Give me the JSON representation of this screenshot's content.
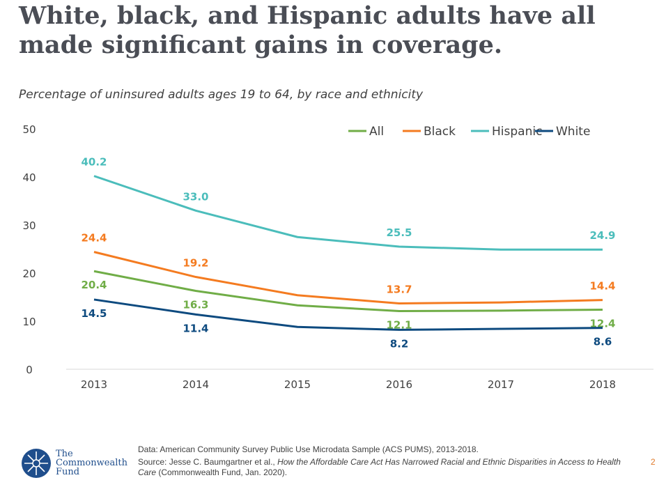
{
  "title": "White, black, and Hispanic adults have all made significant gains in coverage.",
  "chart_data": {
    "type": "line",
    "subtitle": "Percentage of uninsured adults ages 19 to 64, by race and ethnicity",
    "categories": [
      "2013",
      "2014",
      "2015",
      "2016",
      "2017",
      "2018"
    ],
    "ylim": [
      0,
      50
    ],
    "yticks": [
      0,
      10,
      20,
      30,
      40,
      50
    ],
    "grid": false,
    "legend_placement": "top-right",
    "series": [
      {
        "name": "All",
        "color": "#70ad47",
        "values": [
          20.4,
          16.3,
          13.3,
          12.1,
          12.2,
          12.4
        ],
        "labels": [
          "20.4",
          "16.3",
          null,
          "12.1",
          null,
          "12.4"
        ],
        "label_pos": "below"
      },
      {
        "name": "Black",
        "color": "#f47b20",
        "values": [
          24.4,
          19.2,
          15.4,
          13.7,
          13.9,
          14.4
        ],
        "labels": [
          "24.4",
          "19.2",
          null,
          "13.7",
          null,
          "14.4"
        ],
        "label_pos": "above"
      },
      {
        "name": "Hispanic",
        "color": "#4bbdbb",
        "values": [
          40.2,
          33.0,
          27.5,
          25.5,
          24.9,
          24.9
        ],
        "labels": [
          "40.2",
          "33.0",
          null,
          "25.5",
          null,
          "24.9"
        ],
        "label_pos": "above"
      },
      {
        "name": "White",
        "color": "#0d4a7f",
        "values": [
          14.5,
          11.4,
          8.8,
          8.2,
          8.4,
          8.6
        ],
        "labels": [
          "14.5",
          "11.4",
          null,
          "8.2",
          null,
          "8.6"
        ],
        "label_pos": "below"
      }
    ]
  },
  "footer": {
    "data_note": "Data: American Community Survey Public Use Microdata Sample (ACS PUMS), 2013-2018.",
    "source_prefix": "Source: Jesse C. Baumgartner et al., ",
    "source_title": "How the Affordable Care Act Has Narrowed Racial and Ethnic Disparities in Access to Health Care",
    "source_suffix": " (Commonwealth Fund, Jan. 2020).",
    "logo_text": [
      "The",
      "Commonwealth",
      "Fund"
    ],
    "page_number": "2"
  }
}
